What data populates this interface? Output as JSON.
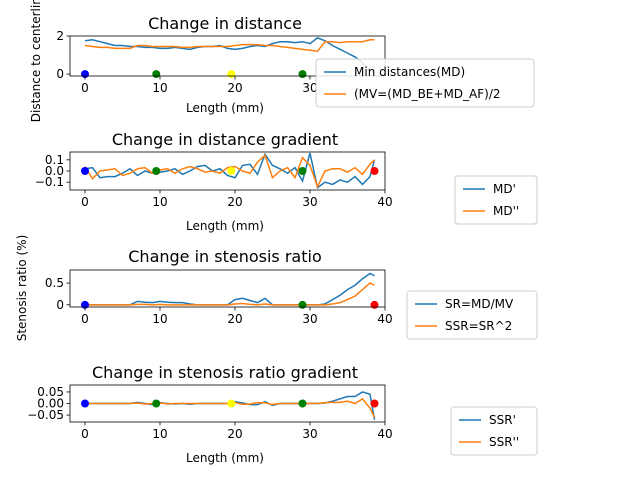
{
  "colors": {
    "series1": "#1f77b4",
    "series2": "#ff7f0e",
    "blue": "#0000ff",
    "green": "#008000",
    "yellow": "#ffff00",
    "red": "#ff0000"
  },
  "chart_data": [
    {
      "type": "line",
      "title": "Change in distance",
      "xlabel": "Length (mm)",
      "ylabel": "Distance to centerline",
      "xlim": [
        -2,
        40
      ],
      "ylim": [
        -0.1,
        2.0
      ],
      "xticks": [
        0,
        10,
        20,
        30
      ],
      "yticks": [
        0,
        2
      ],
      "legend_location": "right",
      "series": [
        {
          "name": "Min distances(MD)",
          "x": [
            0,
            1,
            2,
            3,
            4,
            5,
            6,
            7,
            8,
            9,
            10,
            11,
            12,
            13,
            14,
            15,
            16,
            17,
            18,
            19,
            20,
            21,
            22,
            23,
            24,
            25,
            26,
            27,
            28,
            29,
            30,
            31,
            32,
            33,
            34,
            35,
            36,
            37,
            38,
            38.6
          ],
          "y": [
            1.75,
            1.8,
            1.7,
            1.6,
            1.5,
            1.5,
            1.45,
            1.45,
            1.4,
            1.4,
            1.35,
            1.35,
            1.4,
            1.35,
            1.3,
            1.4,
            1.45,
            1.45,
            1.5,
            1.35,
            1.3,
            1.35,
            1.45,
            1.5,
            1.45,
            1.6,
            1.7,
            1.7,
            1.65,
            1.7,
            1.6,
            1.9,
            1.75,
            1.5,
            1.3,
            1.1,
            0.9,
            0.6,
            0.2,
            0.0
          ]
        },
        {
          "name": "(MV=(MD_BE+MD_AF)/2",
          "x": [
            0,
            1,
            2,
            3,
            4,
            5,
            6,
            7,
            8,
            9,
            10,
            11,
            12,
            13,
            14,
            15,
            16,
            17,
            18,
            19,
            20,
            21,
            22,
            23,
            24,
            25,
            26,
            27,
            28,
            29,
            30,
            31,
            32,
            33,
            34,
            35,
            36,
            37,
            38,
            38.6
          ],
          "y": [
            1.5,
            1.45,
            1.4,
            1.4,
            1.35,
            1.35,
            1.35,
            1.5,
            1.5,
            1.45,
            1.45,
            1.45,
            1.45,
            1.4,
            1.4,
            1.45,
            1.45,
            1.45,
            1.45,
            1.45,
            1.5,
            1.55,
            1.55,
            1.55,
            1.5,
            1.5,
            1.45,
            1.4,
            1.35,
            1.3,
            1.25,
            1.2,
            1.7,
            1.7,
            1.65,
            1.7,
            1.7,
            1.7,
            1.8,
            1.8
          ]
        }
      ],
      "markers": [
        {
          "x": 0,
          "color": "blue"
        },
        {
          "x": 9.5,
          "color": "green"
        },
        {
          "x": 19.5,
          "color": "yellow"
        },
        {
          "x": 29,
          "color": "green"
        }
      ]
    },
    {
      "type": "line",
      "title": "Change in distance gradient",
      "xlabel": "Length (mm)",
      "ylabel": "",
      "xlim": [
        -2,
        40
      ],
      "ylim": [
        -0.17,
        0.17
      ],
      "xticks": [
        0,
        10,
        20,
        30,
        40
      ],
      "yticks": [
        0.1,
        0.0,
        -0.1
      ],
      "yticklabels": [
        "0.1",
        "0.0",
        "−0.1"
      ],
      "legend_location": "right",
      "series": [
        {
          "name": "MD'",
          "x": [
            0,
            1,
            2,
            3,
            4,
            5,
            6,
            7,
            8,
            9,
            10,
            11,
            12,
            13,
            14,
            15,
            16,
            17,
            18,
            19,
            20,
            21,
            22,
            23,
            24,
            25,
            26,
            27,
            28,
            29,
            30,
            31,
            32,
            33,
            34,
            35,
            36,
            37,
            38,
            38.6
          ],
          "y": [
            0.02,
            0.03,
            -0.06,
            -0.05,
            -0.05,
            -0.02,
            0.02,
            -0.04,
            0.0,
            -0.02,
            -0.01,
            0.0,
            0.02,
            -0.03,
            0.0,
            0.04,
            0.05,
            0.0,
            0.02,
            -0.04,
            -0.06,
            0.05,
            0.06,
            -0.03,
            0.15,
            0.05,
            0.02,
            -0.02,
            0.03,
            -0.09,
            0.16,
            -0.15,
            -0.1,
            -0.12,
            -0.08,
            -0.1,
            -0.05,
            -0.12,
            -0.05,
            0.1
          ]
        },
        {
          "name": "MD''",
          "x": [
            0,
            1,
            2,
            3,
            4,
            5,
            6,
            7,
            8,
            9,
            10,
            11,
            12,
            13,
            14,
            15,
            16,
            17,
            18,
            19,
            20,
            21,
            22,
            23,
            24,
            25,
            26,
            27,
            28,
            29,
            30,
            31,
            32,
            33,
            34,
            35,
            36,
            37,
            38,
            38.6
          ],
          "y": [
            0.04,
            -0.07,
            0.0,
            0.01,
            0.02,
            -0.04,
            -0.02,
            0.02,
            0.03,
            -0.02,
            0.01,
            0.02,
            -0.02,
            0.02,
            0.04,
            0.02,
            -0.01,
            0.0,
            -0.02,
            0.03,
            0.04,
            0.0,
            -0.02,
            0.08,
            0.14,
            -0.06,
            0.0,
            0.03,
            -0.06,
            0.12,
            0.05,
            -0.14,
            0.0,
            0.02,
            0.02,
            -0.01,
            0.03,
            -0.03,
            0.06,
            0.1
          ]
        }
      ],
      "markers": [
        {
          "x": 0,
          "color": "blue"
        },
        {
          "x": 9.5,
          "color": "green"
        },
        {
          "x": 19.5,
          "color": "yellow"
        },
        {
          "x": 29,
          "color": "green"
        },
        {
          "x": 38.6,
          "color": "red"
        }
      ]
    },
    {
      "type": "line",
      "title": "Change in stenosis ratio",
      "xlabel": "",
      "ylabel": "Stenosis ratio (%)",
      "xlim": [
        -2,
        40
      ],
      "ylim": [
        -0.05,
        0.8
      ],
      "xticks": [
        0,
        10,
        20,
        30,
        40
      ],
      "yticks": [
        0.0,
        0.5
      ],
      "legend_location": "right",
      "series": [
        {
          "name": "SR=MD/MV",
          "x": [
            0,
            1,
            2,
            3,
            4,
            5,
            6,
            7,
            8,
            9,
            10,
            11,
            12,
            13,
            14,
            15,
            16,
            17,
            18,
            19,
            20,
            21,
            22,
            23,
            24,
            25,
            26,
            27,
            28,
            29,
            30,
            31,
            32,
            33,
            34,
            35,
            36,
            37,
            38,
            38.6
          ],
          "y": [
            0,
            0,
            0,
            0,
            0,
            0,
            0,
            0.08,
            0.06,
            0.05,
            0.08,
            0.06,
            0.05,
            0.05,
            0.02,
            0,
            0,
            0,
            0,
            0,
            0.12,
            0.15,
            0.1,
            0.05,
            0.15,
            0,
            0,
            0,
            0,
            0,
            0,
            0,
            0.02,
            0.12,
            0.22,
            0.35,
            0.45,
            0.6,
            0.72,
            0.67
          ]
        },
        {
          "name": "SSR=SR^2",
          "x": [
            0,
            1,
            2,
            3,
            4,
            5,
            6,
            7,
            8,
            9,
            10,
            11,
            12,
            13,
            14,
            15,
            16,
            17,
            18,
            19,
            20,
            21,
            22,
            23,
            24,
            25,
            26,
            27,
            28,
            29,
            30,
            31,
            32,
            33,
            34,
            35,
            36,
            37,
            38,
            38.6
          ],
          "y": [
            0,
            0,
            0,
            0,
            0,
            0,
            0,
            0.01,
            0.01,
            0.0,
            0.01,
            0.0,
            0.0,
            0.0,
            0.0,
            0,
            0,
            0,
            0,
            0,
            0.02,
            0.03,
            0.01,
            0.0,
            0.02,
            0,
            0,
            0,
            0,
            0,
            0,
            0,
            0.0,
            0.02,
            0.05,
            0.12,
            0.2,
            0.35,
            0.5,
            0.45
          ]
        }
      ],
      "markers": [
        {
          "x": 0,
          "color": "blue"
        },
        {
          "x": 29,
          "color": "green"
        },
        {
          "x": 38.6,
          "color": "red"
        }
      ]
    },
    {
      "type": "line",
      "title": "Change in stenosis ratio gradient",
      "xlabel": "Length (mm)",
      "ylabel": "",
      "xlim": [
        -2,
        40
      ],
      "ylim": [
        -0.08,
        0.08
      ],
      "xticks": [
        0,
        10,
        20,
        30,
        40
      ],
      "yticks": [
        0.05,
        0.0,
        -0.05
      ],
      "yticklabels": [
        "0.05",
        "0.00",
        "−0.05"
      ],
      "legend_location": "right",
      "series": [
        {
          "name": "SSR'",
          "x": [
            0,
            1,
            2,
            3,
            4,
            5,
            6,
            7,
            8,
            9,
            10,
            11,
            12,
            13,
            14,
            15,
            16,
            17,
            18,
            19,
            20,
            21,
            22,
            23,
            24,
            25,
            26,
            27,
            28,
            29,
            30,
            31,
            32,
            33,
            34,
            35,
            36,
            37,
            38,
            38.6
          ],
          "y": [
            0,
            0,
            0,
            0,
            0,
            0,
            0,
            0.005,
            0,
            -0.005,
            0.003,
            0,
            -0.002,
            0,
            -0.003,
            0,
            0,
            0,
            0,
            0,
            0.008,
            0.002,
            -0.005,
            -0.005,
            0.008,
            -0.008,
            0,
            0,
            0,
            0,
            0,
            0,
            0.002,
            0.01,
            0.02,
            0.03,
            0.03,
            0.05,
            0.04,
            -0.07
          ]
        },
        {
          "name": "SSR''",
          "x": [
            0,
            1,
            2,
            3,
            4,
            5,
            6,
            7,
            8,
            9,
            10,
            11,
            12,
            13,
            14,
            15,
            16,
            17,
            18,
            19,
            20,
            21,
            22,
            23,
            24,
            25,
            26,
            27,
            28,
            29,
            30,
            31,
            32,
            33,
            34,
            35,
            36,
            37,
            38,
            38.6
          ],
          "y": [
            0,
            0,
            0,
            0,
            0,
            0,
            0,
            0.002,
            -0.002,
            0,
            0.002,
            -0.002,
            0,
            0,
            0,
            0,
            0,
            0,
            0,
            0,
            0.004,
            -0.004,
            -0.002,
            0.004,
            0.003,
            -0.004,
            0,
            0,
            0,
            0,
            0,
            0,
            0.004,
            0.005,
            0.005,
            0.01,
            0.0,
            0.02,
            -0.02,
            -0.06
          ]
        }
      ],
      "markers": [
        {
          "x": 0,
          "color": "blue"
        },
        {
          "x": 9.5,
          "color": "green"
        },
        {
          "x": 19.5,
          "color": "yellow"
        },
        {
          "x": 29,
          "color": "green"
        },
        {
          "x": 38.6,
          "color": "red"
        }
      ]
    }
  ]
}
